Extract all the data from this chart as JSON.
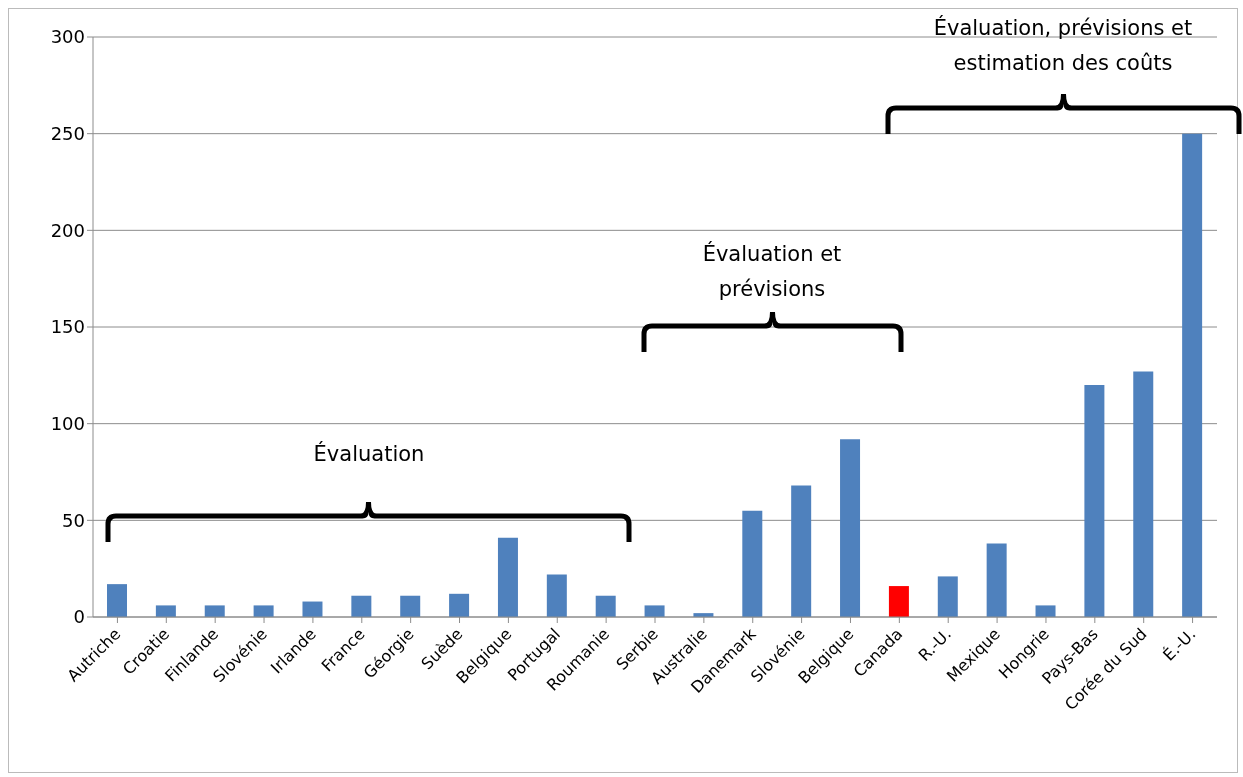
{
  "chart_data": {
    "type": "bar",
    "categories": [
      "Autriche",
      "Croatie",
      "Finlande",
      "Slovénie",
      "Irlande",
      "France",
      "Géorgie",
      "Suède",
      "Belgique",
      "Portugal",
      "Roumanie",
      "Serbie",
      "Australie",
      "Danemark",
      "Slovénie",
      "Belgique",
      "Canada",
      "R.-U.",
      "Mexique",
      "Hongrie",
      "Pays-Bas",
      "Corée du Sud",
      "É.-U."
    ],
    "values": [
      17,
      6,
      6,
      6,
      8,
      11,
      11,
      12,
      41,
      22,
      11,
      6,
      2,
      55,
      68,
      92,
      16,
      21,
      38,
      6,
      120,
      127,
      250
    ],
    "colors": [
      "#4f81bd",
      "#4f81bd",
      "#4f81bd",
      "#4f81bd",
      "#4f81bd",
      "#4f81bd",
      "#4f81bd",
      "#4f81bd",
      "#4f81bd",
      "#4f81bd",
      "#4f81bd",
      "#4f81bd",
      "#4f81bd",
      "#4f81bd",
      "#4f81bd",
      "#4f81bd",
      "#ff0000",
      "#4f81bd",
      "#4f81bd",
      "#4f81bd",
      "#4f81bd",
      "#4f81bd",
      "#4f81bd"
    ],
    "ylim": [
      0,
      300
    ],
    "yticks": [
      0,
      50,
      100,
      150,
      200,
      250,
      300
    ],
    "grid": "y",
    "legend": false,
    "annotations": [
      "Évaluation",
      "Évaluation et prévisions",
      "Évaluation, prévisions et estimation des coûts"
    ]
  }
}
